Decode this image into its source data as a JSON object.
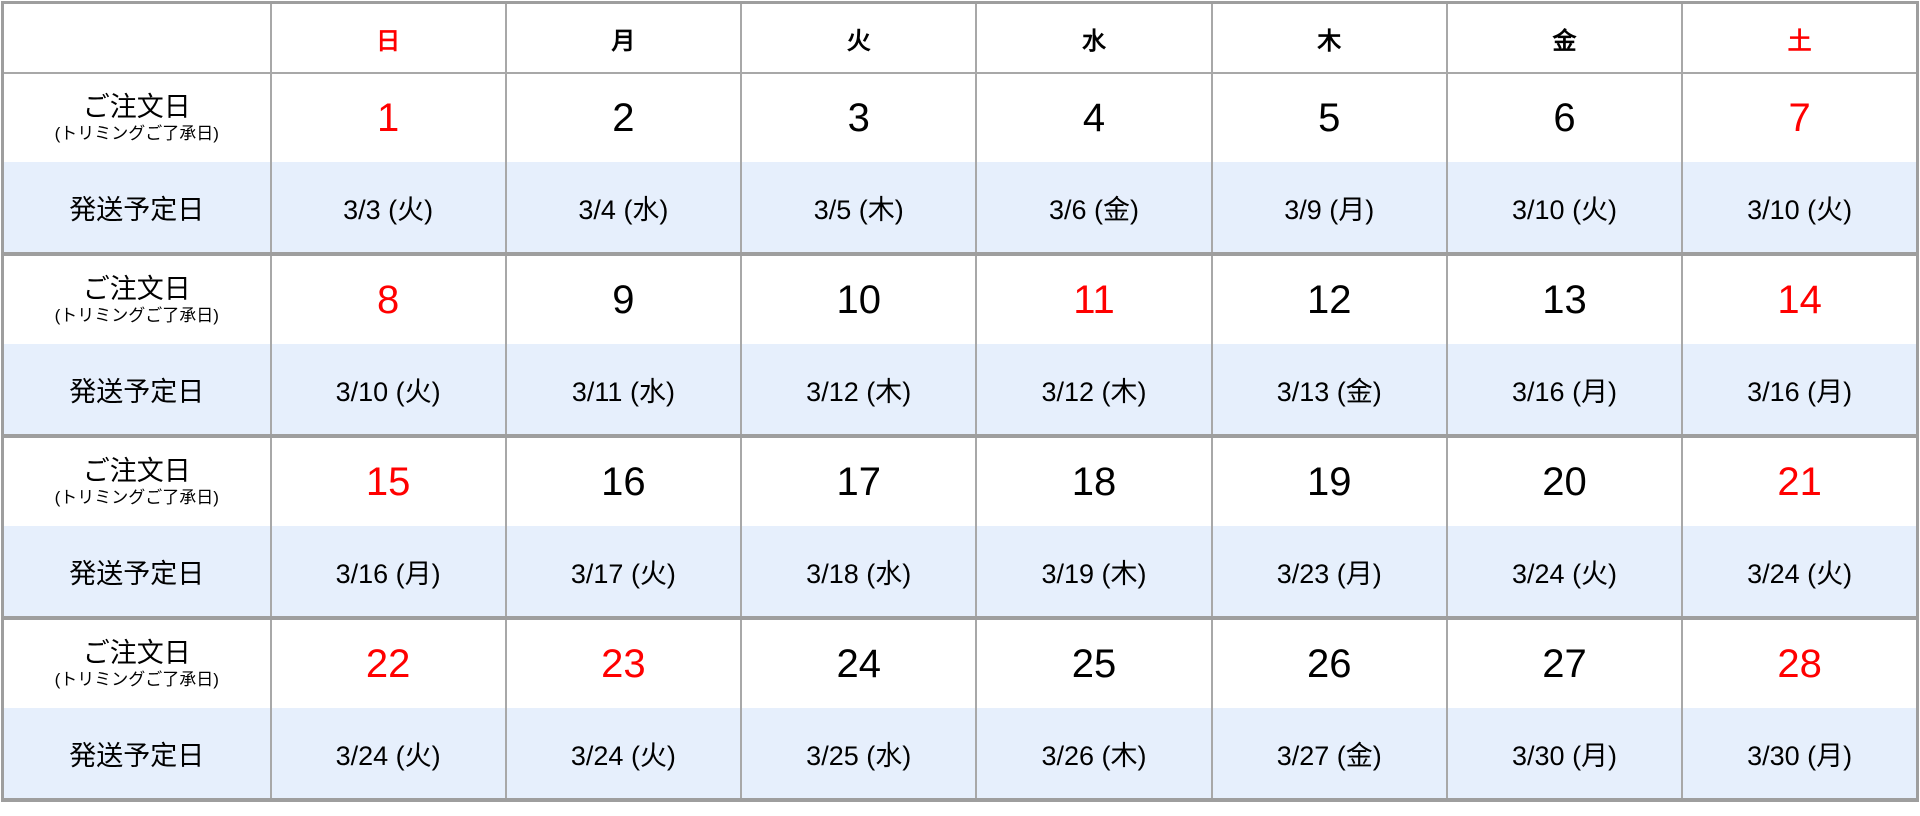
{
  "colors": {
    "holiday": "#ff0000",
    "ship_row_bg": "#e6effc",
    "border": "#a8a8a8"
  },
  "weekdays": [
    {
      "label": "日",
      "holiday": true
    },
    {
      "label": "月",
      "holiday": false
    },
    {
      "label": "火",
      "holiday": false
    },
    {
      "label": "水",
      "holiday": false
    },
    {
      "label": "木",
      "holiday": false
    },
    {
      "label": "金",
      "holiday": false
    },
    {
      "label": "土",
      "holiday": true
    }
  ],
  "labels": {
    "order": "ご注文日",
    "order_sub": "(トリミングご了承日)",
    "ship": "発送予定日"
  },
  "weeks": [
    {
      "days": [
        {
          "d": "1",
          "h": true
        },
        {
          "d": "2"
        },
        {
          "d": "3"
        },
        {
          "d": "4"
        },
        {
          "d": "5"
        },
        {
          "d": "6"
        },
        {
          "d": "7",
          "h": true
        }
      ],
      "ship": [
        "3/3 (火)",
        "3/4 (水)",
        "3/5 (木)",
        "3/6 (金)",
        "3/9 (月)",
        "3/10 (火)",
        "3/10 (火)"
      ]
    },
    {
      "days": [
        {
          "d": "8",
          "h": true
        },
        {
          "d": "9"
        },
        {
          "d": "10"
        },
        {
          "d": "11",
          "h": true
        },
        {
          "d": "12"
        },
        {
          "d": "13"
        },
        {
          "d": "14",
          "h": true
        }
      ],
      "ship": [
        "3/10 (火)",
        "3/11 (水)",
        "3/12 (木)",
        "3/12 (木)",
        "3/13 (金)",
        "3/16 (月)",
        "3/16 (月)"
      ]
    },
    {
      "days": [
        {
          "d": "15",
          "h": true
        },
        {
          "d": "16"
        },
        {
          "d": "17"
        },
        {
          "d": "18"
        },
        {
          "d": "19"
        },
        {
          "d": "20"
        },
        {
          "d": "21",
          "h": true
        }
      ],
      "ship": [
        "3/16 (月)",
        "3/17 (火)",
        "3/18 (水)",
        "3/19 (木)",
        "3/23 (月)",
        "3/24 (火)",
        "3/24 (火)"
      ]
    },
    {
      "days": [
        {
          "d": "22",
          "h": true
        },
        {
          "d": "23",
          "h": true
        },
        {
          "d": "24"
        },
        {
          "d": "25"
        },
        {
          "d": "26"
        },
        {
          "d": "27"
        },
        {
          "d": "28",
          "h": true
        }
      ],
      "ship": [
        "3/24 (火)",
        "3/24 (火)",
        "3/25 (水)",
        "3/26 (木)",
        "3/27 (金)",
        "3/30 (月)",
        "3/30 (月)"
      ]
    }
  ]
}
